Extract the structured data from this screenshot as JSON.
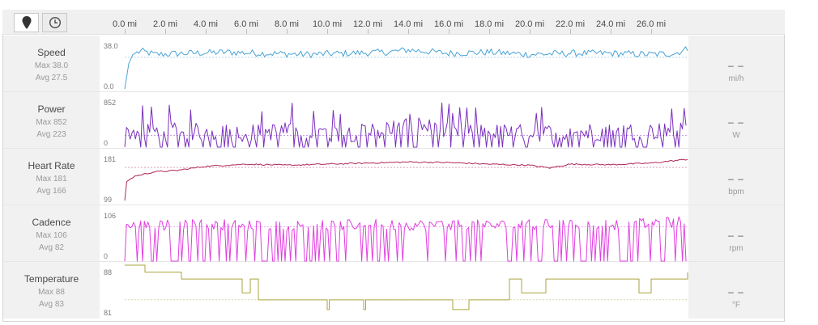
{
  "toolbar": {
    "buttons": [
      {
        "name": "distance-mode",
        "icon": "map-pin-icon",
        "active": true
      },
      {
        "name": "time-mode",
        "icon": "clock-icon",
        "active": false
      }
    ]
  },
  "x_axis": {
    "unit": "mi",
    "ticks": [
      "0.0 mi",
      "2.0 mi",
      "4.0 mi",
      "6.0 mi",
      "8.0 mi",
      "10.0 mi",
      "12.0 mi",
      "14.0 mi",
      "16.0 mi",
      "18.0 mi",
      "20.0 mi",
      "22.0 mi",
      "24.0 mi",
      "26.0 mi"
    ],
    "range": [
      0,
      28.0
    ]
  },
  "panels": [
    {
      "label": "Speed",
      "max": "Max 38.0",
      "avg": "Avg 27.5",
      "unit": "mi/h",
      "current": "– –",
      "ymax": "38.0",
      "ymin": "0.0"
    },
    {
      "label": "Power",
      "max": "Max 852",
      "avg": "Avg 223",
      "unit": "W",
      "current": "– –",
      "ymax": "852",
      "ymin": "0"
    },
    {
      "label": "Heart Rate",
      "max": "Max 181",
      "avg": "Avg 166",
      "unit": "bpm",
      "current": "– –",
      "ymax": "181",
      "ymin": "99"
    },
    {
      "label": "Cadence",
      "max": "Max 106",
      "avg": "Avg 82",
      "unit": "rpm",
      "current": "– –",
      "ymax": "106",
      "ymin": "0"
    },
    {
      "label": "Temperature",
      "max": "Max 88",
      "avg": "Avg 83",
      "unit": "°F",
      "current": "– –",
      "ymax": "88",
      "ymin": "81"
    }
  ],
  "chart_data": [
    {
      "type": "line",
      "name": "Speed",
      "color": "#4aa3d4",
      "ylim": [
        0,
        38.0
      ],
      "avg": 27.5,
      "x": [
        0,
        0.2,
        0.4,
        0.8,
        1.5,
        3,
        5,
        7,
        9,
        11,
        13,
        14,
        16,
        18,
        20,
        22,
        24,
        26,
        27.2,
        27.8
      ],
      "y": [
        0,
        22,
        30,
        33,
        30,
        31,
        32,
        31,
        30,
        31,
        32,
        34,
        31,
        32,
        30,
        31,
        31,
        30,
        31,
        35
      ]
    },
    {
      "type": "line",
      "name": "Power",
      "color": "#7b2fbe",
      "ylim": [
        0,
        852
      ],
      "avg": 223,
      "x": [
        0,
        2,
        4,
        6,
        8,
        10,
        12,
        14,
        16,
        18,
        20,
        22,
        24,
        26,
        27.8
      ],
      "y": [
        230,
        250,
        240,
        220,
        260,
        210,
        230,
        420,
        240,
        230,
        220,
        230,
        240,
        250,
        280
      ]
    },
    {
      "type": "line",
      "name": "Heart Rate",
      "color": "#b0245a",
      "ylim": [
        99,
        181
      ],
      "avg": 166,
      "x": [
        0,
        0.1,
        0.5,
        1.5,
        2.5,
        4,
        6,
        8,
        10,
        12,
        14,
        16,
        18,
        20,
        21,
        22,
        24,
        26,
        27.8
      ],
      "y": [
        105,
        140,
        150,
        158,
        160,
        168,
        172,
        170,
        172,
        174,
        176,
        175,
        172,
        170,
        165,
        172,
        171,
        174,
        181
      ]
    },
    {
      "type": "line",
      "name": "Cadence",
      "color": "#e13ee0",
      "ylim": [
        0,
        106
      ],
      "avg": 82,
      "x": [
        0,
        2,
        4,
        6,
        8,
        10,
        12,
        14,
        16,
        18,
        20,
        22,
        24,
        26,
        27.8
      ],
      "y": [
        84,
        86,
        88,
        85,
        86,
        84,
        88,
        86,
        87,
        85,
        86,
        88,
        87,
        90,
        95
      ]
    },
    {
      "type": "line",
      "name": "Temperature",
      "color": "#aaa43c",
      "ylim": [
        81,
        88
      ],
      "avg": 83,
      "x": [
        0,
        1.0,
        1.0,
        2.8,
        2.8,
        5.8,
        5.8,
        6.2,
        6.2,
        6.6,
        6.6,
        10.0,
        10.0,
        10.1,
        10.1,
        11.8,
        11.8,
        11.9,
        11.9,
        16.2,
        16.2,
        17.0,
        17.0,
        19.0,
        19.0,
        19.6,
        19.6,
        20.8,
        20.8,
        25.4,
        25.4,
        26.0,
        26.0,
        27.8,
        27.8
      ],
      "y": [
        88,
        88,
        87,
        87,
        86,
        86,
        84,
        84,
        86,
        86,
        83,
        83,
        81.6,
        81.6,
        83,
        83,
        81.6,
        81.6,
        83,
        83,
        81.6,
        81.6,
        83,
        83,
        86,
        86,
        84,
        84,
        86,
        86,
        84,
        84,
        86,
        86,
        87
      ]
    }
  ]
}
